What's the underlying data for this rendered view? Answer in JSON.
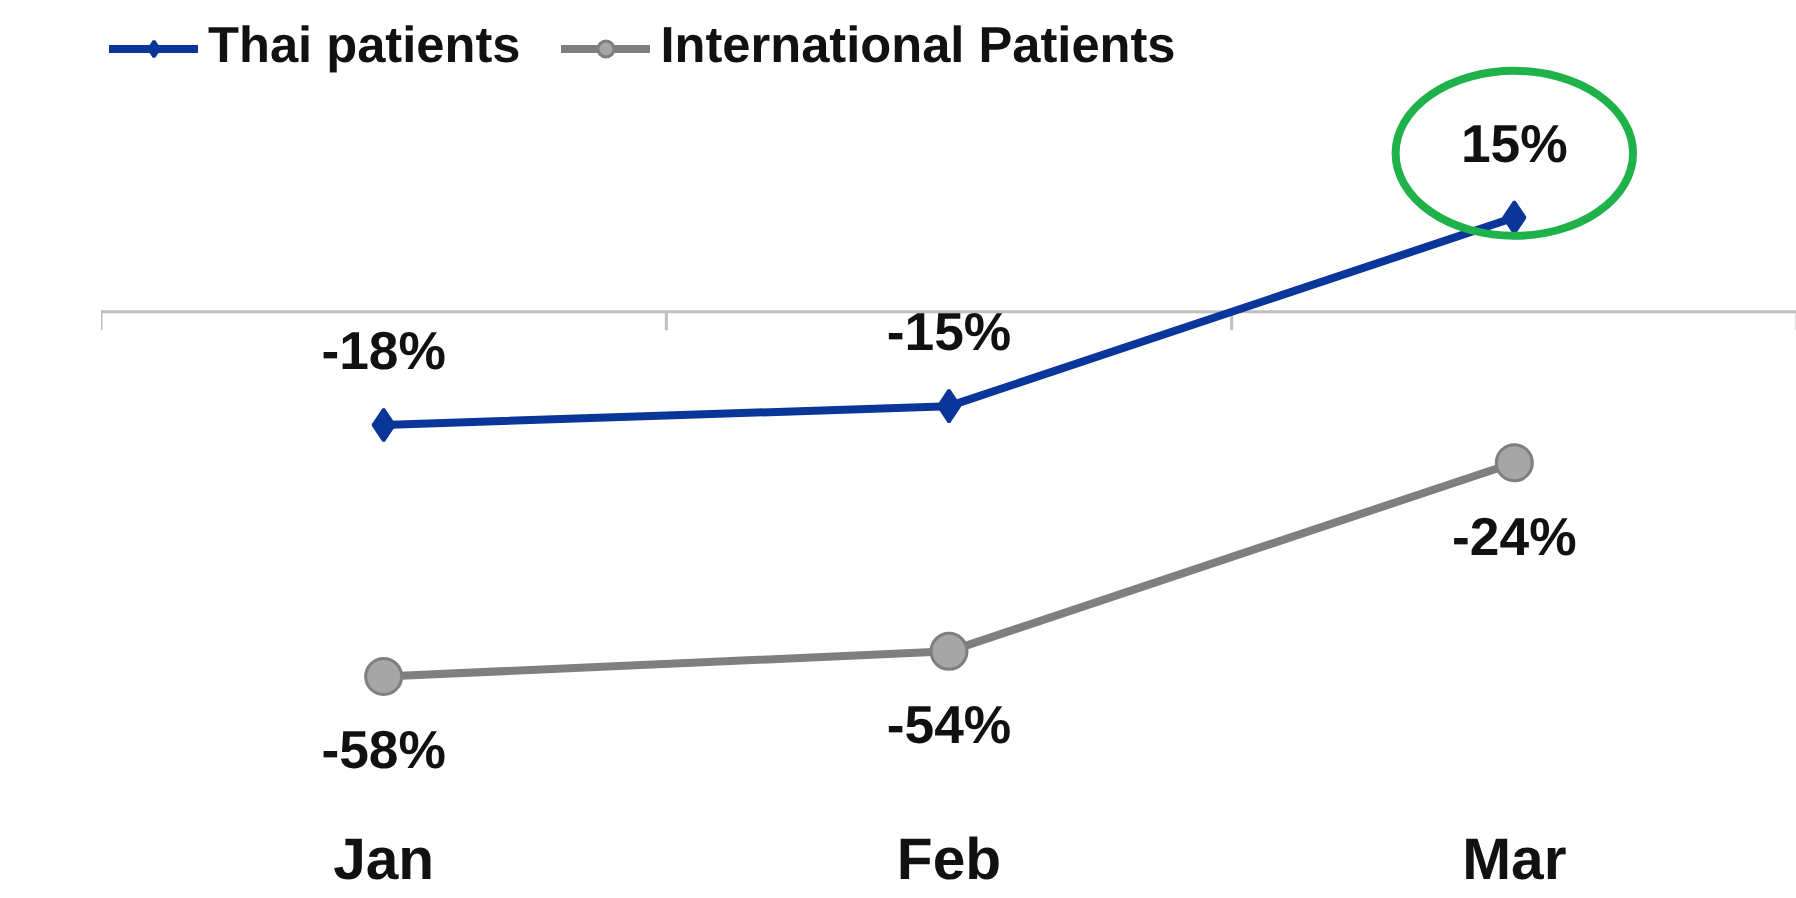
{
  "chart_data": {
    "type": "line",
    "categories": [
      "Jan",
      "Feb",
      "Mar"
    ],
    "series": [
      {
        "name": "Thai patients",
        "color": "#0a3599",
        "values": [
          -18,
          -15,
          15
        ],
        "value_labels": [
          "-18%",
          "-15%",
          "15%"
        ],
        "marker": "diamond"
      },
      {
        "name": "International Patients",
        "color": "#7f7f7f",
        "values": [
          -58,
          -54,
          -24
        ],
        "value_labels": [
          "-58%",
          "-54%",
          "-24%"
        ],
        "marker": "circle"
      }
    ],
    "legend": "top left",
    "tick_labels": "x"
  }
}
